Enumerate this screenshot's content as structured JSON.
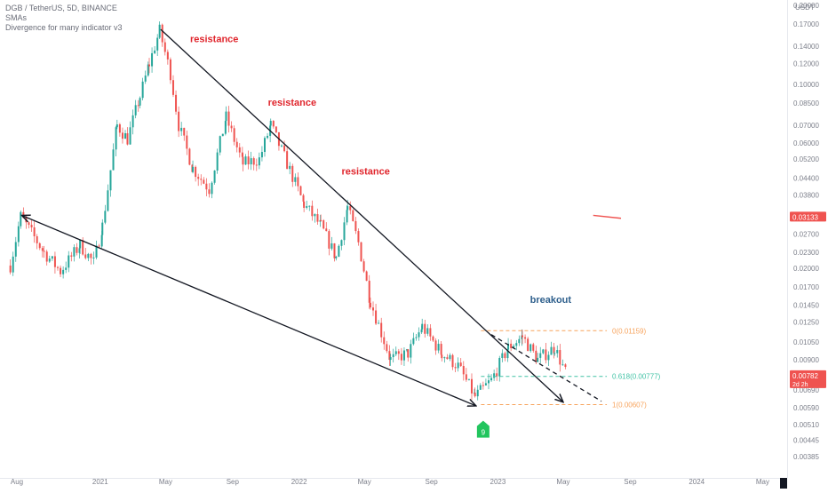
{
  "header": {
    "symbol_line": "DGB / TetherUS, 5D, BINANCE",
    "indicator1": "SMAs",
    "indicator2": "Divergence for many indicator v3"
  },
  "currency": "USDT",
  "colors": {
    "up": "#26a69a",
    "down": "#ef5350",
    "annotation_red": "#e0262d",
    "annotation_blue": "#2e5f8c",
    "fib_orange": "#f7a35c",
    "fib_teal": "#42c3a6",
    "price_tag": "#ef5350",
    "signal_green": "#22c55e"
  },
  "annotations": {
    "resistance_1": "resistance",
    "resistance_2": "resistance",
    "resistance_3": "resistance",
    "breakout": "breakout",
    "signal_marker": "9"
  },
  "fib_levels": [
    {
      "label": "0(0.01159)",
      "price": 0.01159,
      "color": "orange"
    },
    {
      "label": "0.618(0.00777)",
      "price": 0.00777,
      "color": "teal"
    },
    {
      "label": "1(0.00607)",
      "price": 0.00607,
      "color": "orange"
    }
  ],
  "price_tags": [
    {
      "value": "0.03133",
      "price": 0.03133
    },
    {
      "value": "0.00782",
      "price": 0.00782,
      "sub": "2d 2h"
    }
  ],
  "chart_data": {
    "type": "candlestick",
    "title": "DGB / TetherUS, 5D, BINANCE",
    "y_scale": "log",
    "ylim": [
      0.00385,
      0.2
    ],
    "y_ticks": [
      0.2,
      0.17,
      0.14,
      0.12,
      0.1,
      0.085,
      0.07,
      0.06,
      0.052,
      0.044,
      0.038,
      0.03133,
      0.027,
      0.023,
      0.02,
      0.017,
      0.0145,
      0.0125,
      0.0105,
      0.009,
      0.00782,
      0.0069,
      0.0059,
      0.0051,
      0.00445,
      0.00385
    ],
    "y_tick_labels": [
      "0.20000",
      "0.17000",
      "0.14000",
      "0.12000",
      "0.10000",
      "0.08500",
      "0.07000",
      "0.06000",
      "0.05200",
      "0.04400",
      "0.03800",
      "0.03133",
      "0.02700",
      "0.02300",
      "0.02000",
      "0.01700",
      "0.01450",
      "0.01250",
      "0.01050",
      "0.00900",
      "0.00782",
      "0.00690",
      "0.00590",
      "0.00510",
      "0.00445",
      "0.00385"
    ],
    "x_range": [
      "2020-07-01",
      "2024-06-15"
    ],
    "x_ticks": [
      {
        "date": "2020-08-01",
        "label": "Aug"
      },
      {
        "date": "2021-01-01",
        "label": "2021"
      },
      {
        "date": "2021-05-01",
        "label": "May"
      },
      {
        "date": "2021-09-01",
        "label": "Sep"
      },
      {
        "date": "2022-01-01",
        "label": "2022"
      },
      {
        "date": "2022-05-01",
        "label": "May"
      },
      {
        "date": "2022-09-01",
        "label": "Sep"
      },
      {
        "date": "2023-01-01",
        "label": "2023"
      },
      {
        "date": "2023-05-01",
        "label": "May"
      },
      {
        "date": "2023-09-01",
        "label": "Sep"
      },
      {
        "date": "2024-01-01",
        "label": "2024"
      },
      {
        "date": "2024-05-01",
        "label": "May"
      }
    ],
    "close_anchors": [
      {
        "date": "2020-07-20",
        "close": 0.0205
      },
      {
        "date": "2020-08-08",
        "close": 0.0315
      },
      {
        "date": "2020-09-20",
        "close": 0.023
      },
      {
        "date": "2020-10-20",
        "close": 0.0195
      },
      {
        "date": "2020-11-25",
        "close": 0.0245
      },
      {
        "date": "2020-12-20",
        "close": 0.021
      },
      {
        "date": "2021-01-05",
        "close": 0.029
      },
      {
        "date": "2021-02-01",
        "close": 0.07
      },
      {
        "date": "2021-02-20",
        "close": 0.062
      },
      {
        "date": "2021-03-15",
        "close": 0.09
      },
      {
        "date": "2021-04-01",
        "close": 0.12
      },
      {
        "date": "2021-04-20",
        "close": 0.16
      },
      {
        "date": "2021-05-10",
        "close": 0.11
      },
      {
        "date": "2021-05-25",
        "close": 0.07
      },
      {
        "date": "2021-06-20",
        "close": 0.048
      },
      {
        "date": "2021-07-20",
        "close": 0.04
      },
      {
        "date": "2021-08-20",
        "close": 0.075
      },
      {
        "date": "2021-09-20",
        "close": 0.05
      },
      {
        "date": "2021-10-20",
        "close": 0.052
      },
      {
        "date": "2021-11-10",
        "close": 0.07
      },
      {
        "date": "2021-12-10",
        "close": 0.05
      },
      {
        "date": "2022-01-10",
        "close": 0.035
      },
      {
        "date": "2022-02-10",
        "close": 0.029
      },
      {
        "date": "2022-03-10",
        "close": 0.022
      },
      {
        "date": "2022-03-31",
        "close": 0.034
      },
      {
        "date": "2022-04-20",
        "close": 0.025
      },
      {
        "date": "2022-05-12",
        "close": 0.015
      },
      {
        "date": "2022-06-18",
        "close": 0.009
      },
      {
        "date": "2022-07-20",
        "close": 0.0095
      },
      {
        "date": "2022-08-15",
        "close": 0.012
      },
      {
        "date": "2022-09-20",
        "close": 0.0095
      },
      {
        "date": "2022-10-20",
        "close": 0.0085
      },
      {
        "date": "2022-11-20",
        "close": 0.0065
      },
      {
        "date": "2022-12-20",
        "close": 0.0075
      },
      {
        "date": "2023-01-20",
        "close": 0.01
      },
      {
        "date": "2023-02-15",
        "close": 0.011
      },
      {
        "date": "2023-03-15",
        "close": 0.009
      },
      {
        "date": "2023-04-15",
        "close": 0.01
      },
      {
        "date": "2023-05-08",
        "close": 0.0078
      }
    ],
    "trendlines": [
      {
        "name": "upper-resistance",
        "from": {
          "date": "2021-04-22",
          "price": 0.162
        },
        "to": {
          "date": "2023-05-01",
          "price": 0.0062
        },
        "style": "solid",
        "arrows": "end"
      },
      {
        "name": "lower-support",
        "from": {
          "date": "2020-08-10",
          "price": 0.0318
        },
        "to": {
          "date": "2022-11-22",
          "price": 0.006
        },
        "style": "solid",
        "arrows": "both"
      },
      {
        "name": "breakout-dash",
        "from": {
          "date": "2022-12-20",
          "price": 0.0112
        },
        "to": {
          "date": "2023-07-10",
          "price": 0.00625
        },
        "style": "dashed",
        "arrows": "none"
      }
    ]
  }
}
